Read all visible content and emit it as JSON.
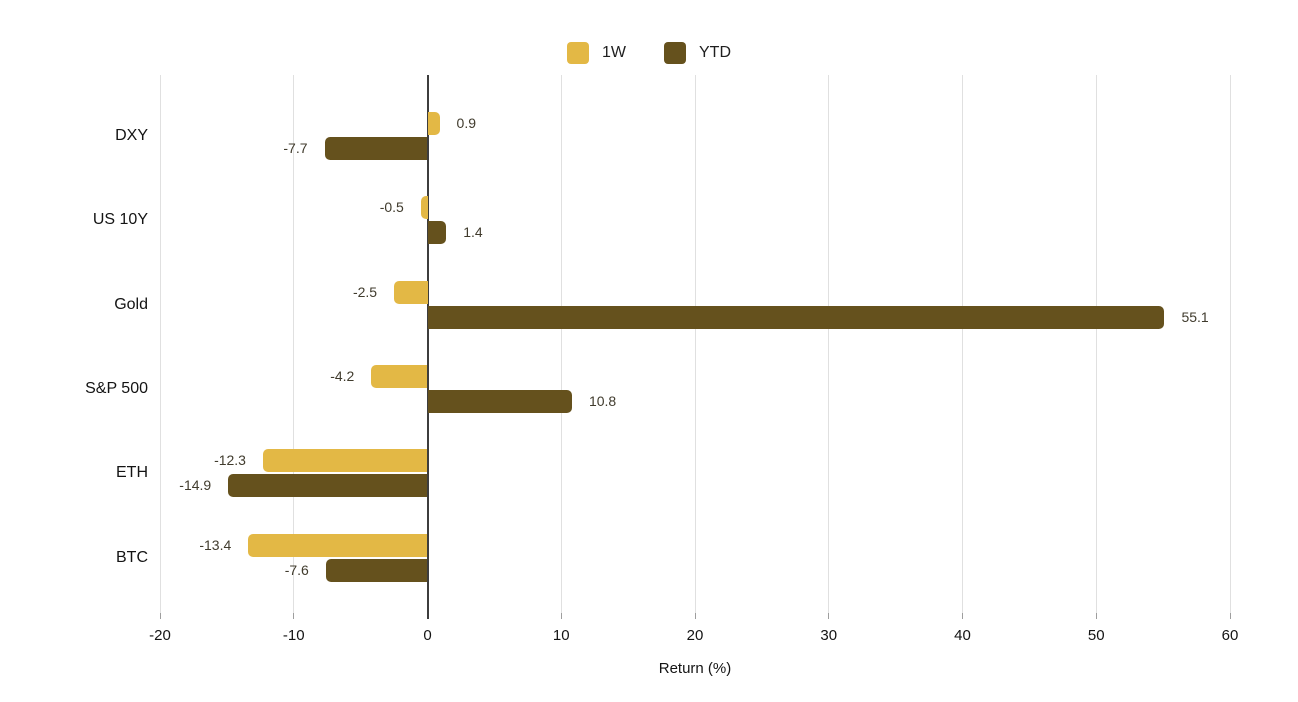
{
  "chart_data": {
    "type": "bar",
    "orientation": "horizontal",
    "xlabel": "Return (%)",
    "xlim": [
      -20,
      60
    ],
    "xticks": [
      -20,
      -10,
      0,
      10,
      20,
      30,
      40,
      50,
      60
    ],
    "grid": true,
    "legend_position": "top",
    "categories": [
      "DXY",
      "US 10Y",
      "Gold",
      "S&P 500",
      "ETH",
      "BTC"
    ],
    "series": [
      {
        "name": "1W",
        "color": "#E3B845",
        "label_color": "#403b2d",
        "values": [
          0.9,
          -0.5,
          -2.5,
          -4.2,
          -12.3,
          -13.4
        ],
        "labels": [
          "0.9",
          "-0.5",
          "-2.5",
          "-4.2",
          "-12.3",
          "-13.4"
        ]
      },
      {
        "name": "YTD",
        "color": "#65511D",
        "label_color": "#403b2d",
        "values": [
          -7.7,
          1.4,
          55.1,
          10.8,
          -14.9,
          -7.6
        ],
        "labels": [
          "-7.7",
          "1.4",
          "55.1",
          "10.8",
          "-14.9",
          "-7.6"
        ]
      }
    ]
  }
}
